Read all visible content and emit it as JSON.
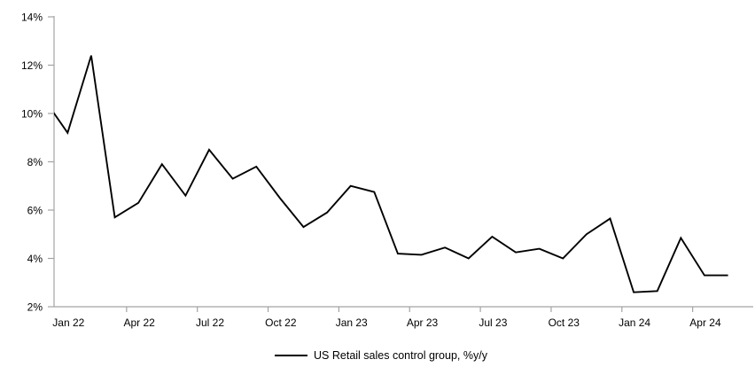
{
  "chart_data": {
    "type": "line",
    "title": "",
    "legend": "US Retail sales control group, %y/y",
    "legend_position": "bottom-center",
    "grid": false,
    "line_color": "#000000",
    "axis_color": "#a3a3a3",
    "background": "#ffffff",
    "ylim": [
      2,
      14
    ],
    "y_ticks": [
      {
        "label": "2%",
        "value": 2
      },
      {
        "label": "4%",
        "value": 4
      },
      {
        "label": "6%",
        "value": 6
      },
      {
        "label": "8%",
        "value": 8
      },
      {
        "label": "10%",
        "value": 10
      },
      {
        "label": "12%",
        "value": 12
      },
      {
        "label": "14%",
        "value": 14
      }
    ],
    "x_tick_labels": [
      "Jan 22",
      "Apr 22",
      "Jul 22",
      "Oct 22",
      "Jan 23",
      "Apr 23",
      "Jul 23",
      "Oct 23",
      "Jan 24",
      "Apr 24"
    ],
    "x_tick_label_interval_months": 3,
    "lead_point": {
      "label": "Dec 21",
      "value": 10.6,
      "note": "segment partially clipped by left axis"
    },
    "x": [
      "Jan 22",
      "Feb 22",
      "Mar 22",
      "Apr 22",
      "May 22",
      "Jun 22",
      "Jul 22",
      "Aug 22",
      "Sep 22",
      "Oct 22",
      "Nov 22",
      "Dec 22",
      "Jan 23",
      "Feb 23",
      "Mar 23",
      "Apr 23",
      "May 23",
      "Jun 23",
      "Jul 23",
      "Aug 23",
      "Sep 23",
      "Oct 23",
      "Nov 23",
      "Dec 23",
      "Jan 24",
      "Feb 24",
      "Mar 24",
      "Apr 24",
      "May 24"
    ],
    "values": [
      9.2,
      12.4,
      5.7,
      6.3,
      7.9,
      6.6,
      8.5,
      7.3,
      7.8,
      6.5,
      5.3,
      5.9,
      7.0,
      6.75,
      4.2,
      4.15,
      4.45,
      4.0,
      4.9,
      4.25,
      4.4,
      4.0,
      5.0,
      5.65,
      2.6,
      2.65,
      4.85,
      3.3,
      3.3
    ]
  }
}
